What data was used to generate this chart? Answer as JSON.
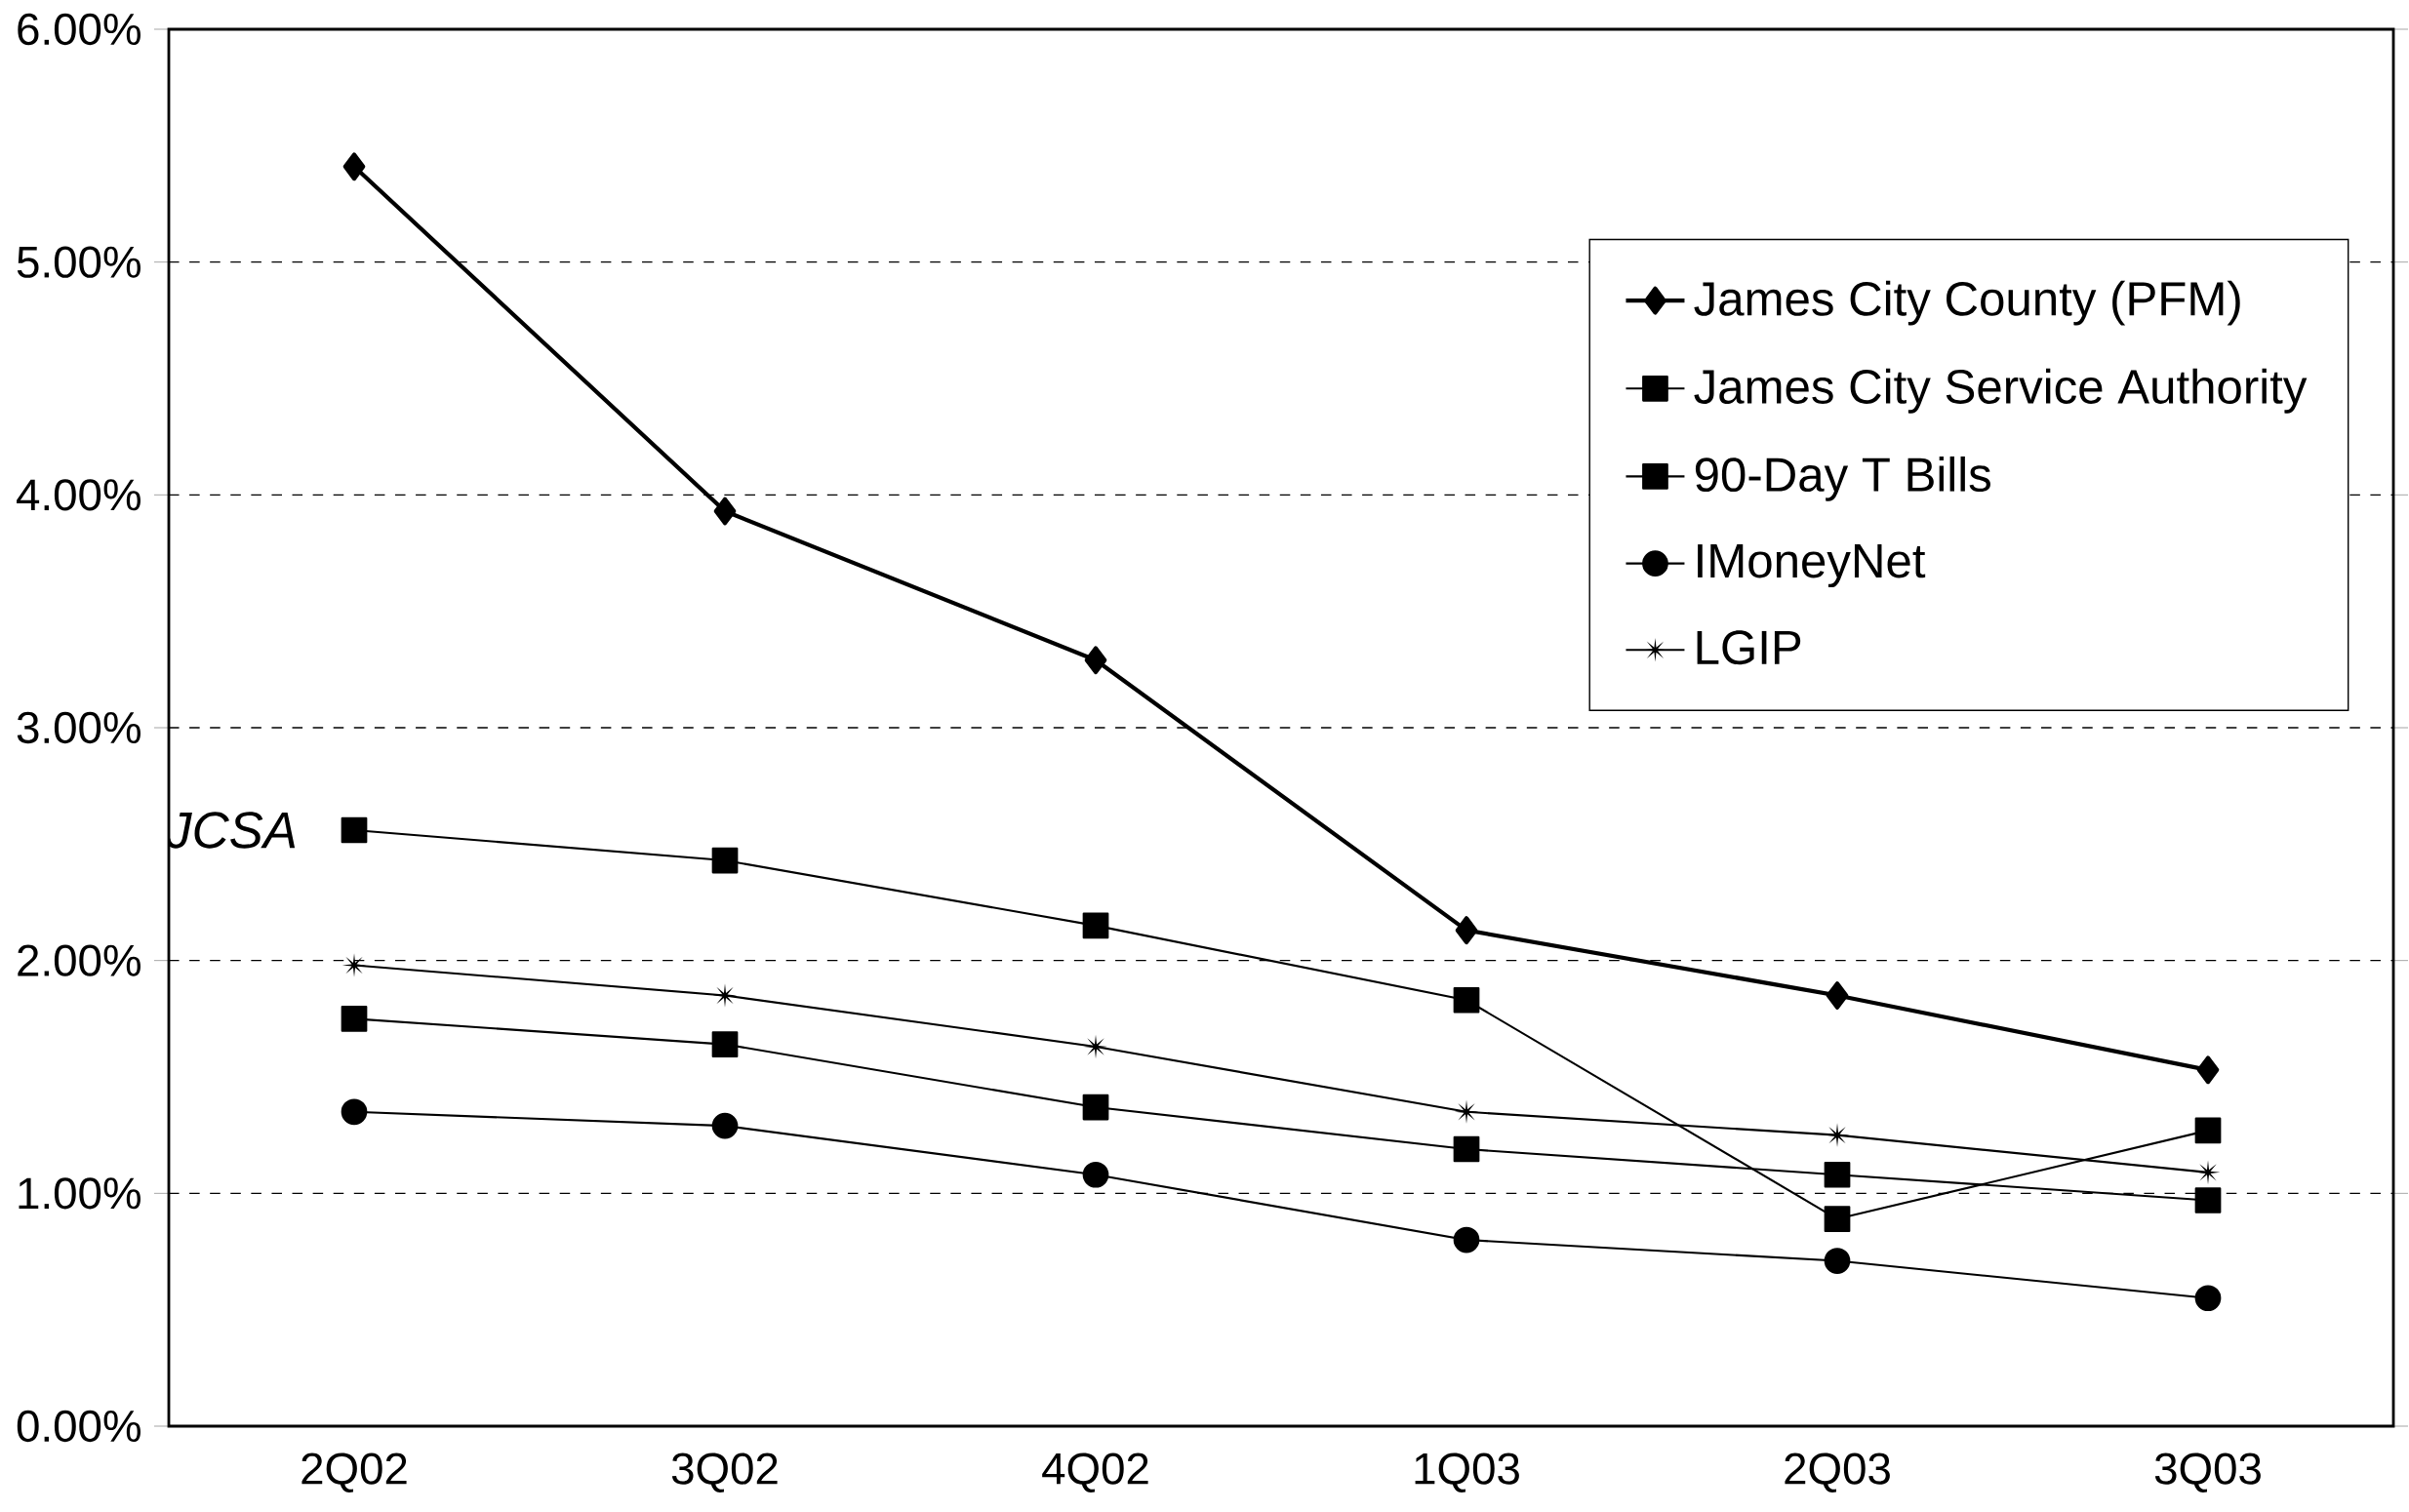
{
  "chart_data": {
    "type": "line",
    "categories": [
      "2Q02",
      "3Q02",
      "4Q02",
      "1Q03",
      "2Q03",
      "3Q03"
    ],
    "series": [
      {
        "name": "James City County (PFM)",
        "color": "#000000",
        "marker": "diamond",
        "values": [
          5.41,
          3.93,
          3.29,
          2.13,
          1.85,
          1.53
        ]
      },
      {
        "name": "James City Service Authority",
        "color": "#000000",
        "marker": "square",
        "values": [
          2.56,
          2.43,
          2.15,
          1.83,
          0.89,
          1.27
        ]
      },
      {
        "name": "90-Day T Bills",
        "color": "#000000",
        "marker": "square",
        "values": [
          1.75,
          1.64,
          1.37,
          1.19,
          1.08,
          0.97
        ]
      },
      {
        "name": "IMoneyNet",
        "color": "#000000",
        "marker": "circle",
        "values": [
          1.35,
          1.29,
          1.08,
          0.8,
          0.71,
          0.55
        ]
      },
      {
        "name": "LGIP",
        "color": "#000000",
        "marker": "cross",
        "values": [
          1.98,
          1.85,
          1.63,
          1.35,
          1.25,
          1.09
        ]
      }
    ],
    "ylim": [
      0,
      6
    ],
    "yticks": [
      {
        "value": 0,
        "label": "0.00%"
      },
      {
        "value": 1,
        "label": "1.00%"
      },
      {
        "value": 2,
        "label": "2.00%"
      },
      {
        "value": 3,
        "label": "3.00%"
      },
      {
        "value": 4,
        "label": "4.00%"
      },
      {
        "value": 5,
        "label": "5.00%"
      },
      {
        "value": 6,
        "label": "6.00%"
      }
    ],
    "grid": "y",
    "legend": "top right",
    "line_style": "solid",
    "annotations": [
      {
        "text": "JCSA",
        "x": "2Q02",
        "y": 2.56
      }
    ]
  }
}
